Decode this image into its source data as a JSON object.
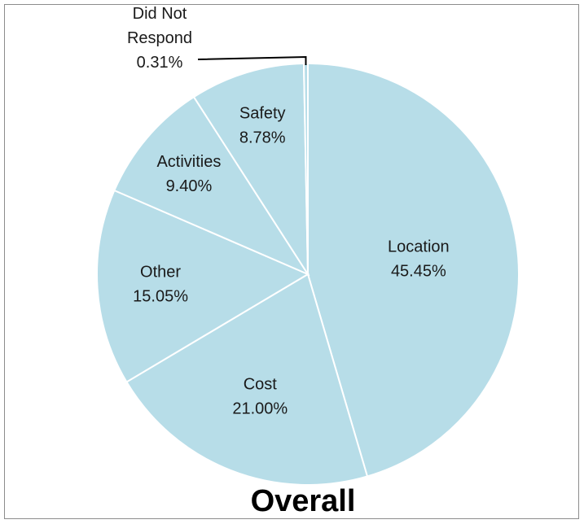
{
  "chart_data": {
    "type": "pie",
    "title": "Overall",
    "slice_color": "#b7dde8",
    "slices": [
      {
        "name": "Location",
        "value": 45.45,
        "label": "45.45%"
      },
      {
        "name": "Cost",
        "value": 21.0,
        "label": "21.00%"
      },
      {
        "name": "Other",
        "value": 15.05,
        "label": "15.05%"
      },
      {
        "name": "Activities",
        "value": 9.4,
        "label": "9.40%"
      },
      {
        "name": "Safety",
        "value": 8.78,
        "label": "8.78%"
      },
      {
        "name": "Did Not Respond",
        "name_lines": [
          "Did Not",
          "Respond"
        ],
        "value": 0.31,
        "label": "0.31%"
      }
    ]
  }
}
